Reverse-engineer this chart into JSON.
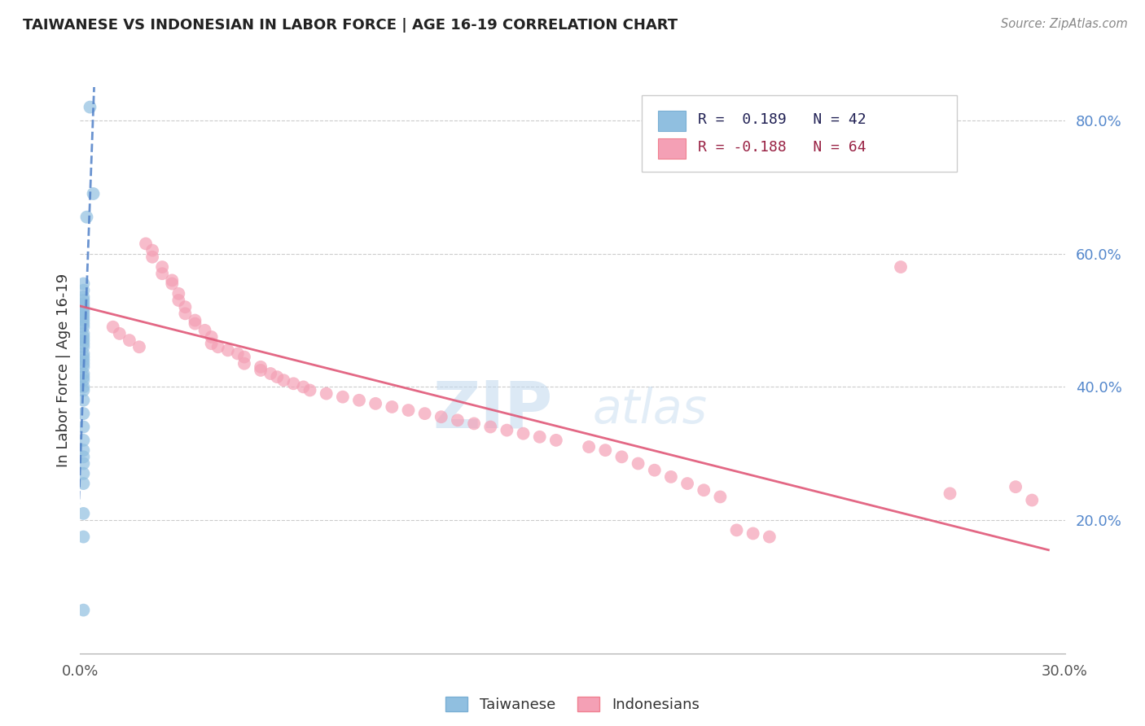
{
  "title": "TAIWANESE VS INDONESIAN IN LABOR FORCE | AGE 16-19 CORRELATION CHART",
  "source": "Source: ZipAtlas.com",
  "ylabel": "In Labor Force | Age 16-19",
  "xlim": [
    0.0,
    0.3
  ],
  "ylim": [
    0.0,
    0.85
  ],
  "ytick_values": [
    0.2,
    0.4,
    0.6,
    0.8
  ],
  "xtick_values": [
    0.0,
    0.3
  ],
  "legend_entry1": "R =  0.189   N = 42",
  "legend_entry2": "R = -0.188   N = 64",
  "watermark_zip": "ZIP",
  "watermark_atlas": "atlas",
  "taiwanese_color": "#90bfe0",
  "indonesian_color": "#f4a0b5",
  "trend_taiwanese_color": "#5080c8",
  "trend_indonesian_color": "#e05878",
  "taiwanese_x": [
    0.003,
    0.004,
    0.002,
    0.001,
    0.001,
    0.001,
    0.001,
    0.001,
    0.001,
    0.001,
    0.001,
    0.001,
    0.001,
    0.001,
    0.001,
    0.001,
    0.001,
    0.001,
    0.001,
    0.001,
    0.001,
    0.001,
    0.001,
    0.001,
    0.001,
    0.001,
    0.001,
    0.001,
    0.001,
    0.001,
    0.001,
    0.001,
    0.001,
    0.001,
    0.001,
    0.001,
    0.001,
    0.001,
    0.001,
    0.001,
    0.001,
    0.001
  ],
  "taiwanese_y": [
    0.82,
    0.69,
    0.655,
    0.555,
    0.545,
    0.535,
    0.53,
    0.525,
    0.52,
    0.515,
    0.51,
    0.505,
    0.5,
    0.495,
    0.49,
    0.48,
    0.475,
    0.47,
    0.465,
    0.46,
    0.45,
    0.445,
    0.44,
    0.435,
    0.43,
    0.42,
    0.415,
    0.41,
    0.4,
    0.395,
    0.38,
    0.36,
    0.34,
    0.32,
    0.305,
    0.295,
    0.285,
    0.27,
    0.255,
    0.21,
    0.175,
    0.065
  ],
  "indonesian_x": [
    0.01,
    0.012,
    0.015,
    0.018,
    0.02,
    0.022,
    0.022,
    0.025,
    0.025,
    0.028,
    0.028,
    0.03,
    0.03,
    0.032,
    0.032,
    0.035,
    0.035,
    0.038,
    0.04,
    0.04,
    0.042,
    0.045,
    0.048,
    0.05,
    0.05,
    0.055,
    0.055,
    0.058,
    0.06,
    0.062,
    0.065,
    0.068,
    0.07,
    0.075,
    0.08,
    0.085,
    0.09,
    0.095,
    0.1,
    0.105,
    0.11,
    0.115,
    0.12,
    0.125,
    0.13,
    0.135,
    0.14,
    0.145,
    0.155,
    0.16,
    0.165,
    0.17,
    0.175,
    0.18,
    0.185,
    0.19,
    0.195,
    0.2,
    0.205,
    0.21,
    0.25,
    0.265,
    0.285,
    0.29
  ],
  "indonesian_y": [
    0.49,
    0.48,
    0.47,
    0.46,
    0.615,
    0.605,
    0.595,
    0.58,
    0.57,
    0.56,
    0.555,
    0.54,
    0.53,
    0.52,
    0.51,
    0.5,
    0.495,
    0.485,
    0.475,
    0.465,
    0.46,
    0.455,
    0.45,
    0.445,
    0.435,
    0.43,
    0.425,
    0.42,
    0.415,
    0.41,
    0.405,
    0.4,
    0.395,
    0.39,
    0.385,
    0.38,
    0.375,
    0.37,
    0.365,
    0.36,
    0.355,
    0.35,
    0.345,
    0.34,
    0.335,
    0.33,
    0.325,
    0.32,
    0.31,
    0.305,
    0.295,
    0.285,
    0.275,
    0.265,
    0.255,
    0.245,
    0.235,
    0.185,
    0.18,
    0.175,
    0.58,
    0.24,
    0.25,
    0.23
  ],
  "tw_trend_x_start": -0.003,
  "tw_trend_x_end": 0.018,
  "id_trend_x_start": 0.0,
  "id_trend_x_end": 0.295
}
